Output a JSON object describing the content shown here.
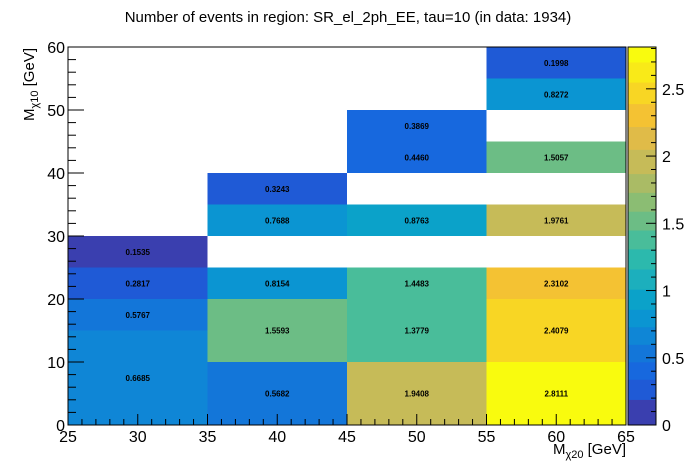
{
  "chart_data": {
    "type": "heatmap",
    "title": "Number of events in region: SR_el_2ph_EE, tau=10 (in data: 1934)",
    "xlabel": {
      "base": "M",
      "sub": "χ20",
      "unit": " [GeV]"
    },
    "ylabel": {
      "base": "M",
      "sub": "χ10",
      "unit": " [GeV]"
    },
    "xlim": [
      25,
      65
    ],
    "ylim": [
      0,
      60
    ],
    "zlim": [
      0,
      2.8111
    ],
    "x_ticks": [
      "25",
      "30",
      "35",
      "40",
      "45",
      "50",
      "55",
      "60",
      "65"
    ],
    "y_ticks": [
      "0",
      "10",
      "20",
      "30",
      "40",
      "50",
      "60"
    ],
    "z_ticks": [
      "0",
      "0.5",
      "1",
      "1.5",
      "2",
      "2.5"
    ],
    "cells": [
      {
        "x": [
          25,
          35
        ],
        "y": [
          0,
          15
        ],
        "z": 0.6685,
        "label": "0.6685"
      },
      {
        "x": [
          25,
          35
        ],
        "y": [
          15,
          20
        ],
        "z": 0.5767,
        "label": "0.5767"
      },
      {
        "x": [
          25,
          35
        ],
        "y": [
          20,
          25
        ],
        "z": 0.2817,
        "label": "0.2817"
      },
      {
        "x": [
          25,
          35
        ],
        "y": [
          25,
          30
        ],
        "z": 0.1535,
        "label": "0.1535"
      },
      {
        "x": [
          35,
          45
        ],
        "y": [
          0,
          10
        ],
        "z": 0.5682,
        "label": "0.5682"
      },
      {
        "x": [
          35,
          45
        ],
        "y": [
          10,
          20
        ],
        "z": 1.5593,
        "label": "1.5593"
      },
      {
        "x": [
          35,
          45
        ],
        "y": [
          20,
          25
        ],
        "z": 0.8154,
        "label": "0.8154"
      },
      {
        "x": [
          35,
          45
        ],
        "y": [
          30,
          35
        ],
        "z": 0.7688,
        "label": "0.7688"
      },
      {
        "x": [
          35,
          45
        ],
        "y": [
          35,
          40
        ],
        "z": 0.3243,
        "label": "0.3243"
      },
      {
        "x": [
          45,
          55
        ],
        "y": [
          0,
          10
        ],
        "z": 1.9408,
        "label": "1.9408"
      },
      {
        "x": [
          45,
          55
        ],
        "y": [
          10,
          20
        ],
        "z": 1.3779,
        "label": "1.3779"
      },
      {
        "x": [
          45,
          55
        ],
        "y": [
          20,
          25
        ],
        "z": 1.4483,
        "label": "1.4483"
      },
      {
        "x": [
          45,
          55
        ],
        "y": [
          30,
          35
        ],
        "z": 0.8763,
        "label": "0.8763"
      },
      {
        "x": [
          45,
          55
        ],
        "y": [
          40,
          45
        ],
        "z": 0.446,
        "label": "0.4460"
      },
      {
        "x": [
          45,
          55
        ],
        "y": [
          45,
          50
        ],
        "z": 0.3869,
        "label": "0.3869"
      },
      {
        "x": [
          55,
          65
        ],
        "y": [
          0,
          10
        ],
        "z": 2.8111,
        "label": "2.8111"
      },
      {
        "x": [
          55,
          65
        ],
        "y": [
          10,
          20
        ],
        "z": 2.4079,
        "label": "2.4079"
      },
      {
        "x": [
          55,
          65
        ],
        "y": [
          20,
          25
        ],
        "z": 2.3102,
        "label": "2.3102"
      },
      {
        "x": [
          55,
          65
        ],
        "y": [
          30,
          35
        ],
        "z": 1.9761,
        "label": "1.9761"
      },
      {
        "x": [
          55,
          65
        ],
        "y": [
          40,
          45
        ],
        "z": 1.5057,
        "label": "1.5057"
      },
      {
        "x": [
          55,
          65
        ],
        "y": [
          50,
          55
        ],
        "z": 0.8272,
        "label": "0.8272"
      },
      {
        "x": [
          55,
          65
        ],
        "y": [
          55,
          60
        ],
        "z": 0.1998,
        "label": "0.1998"
      }
    ],
    "palette": [
      "#3a3faf",
      "#1f5ad6",
      "#1768de",
      "#1376d9",
      "#0f86d6",
      "#0b95d2",
      "#0ba2c9",
      "#1cafbd",
      "#2cb9ad",
      "#49bd9a",
      "#6cbd85",
      "#8bbd73",
      "#aabb65",
      "#c6bb58",
      "#e0bb48",
      "#f4c233",
      "#f8d624",
      "#f9ea18",
      "#f9fb0e"
    ],
    "colorbar_bounds": [
      0,
      0.19,
      0.34,
      0.47,
      0.6,
      0.73,
      0.86,
      1.01,
      1.16,
      1.31,
      1.45,
      1.59,
      1.73,
      1.87,
      2.05,
      2.22,
      2.39,
      2.55,
      2.7,
      2.8111
    ]
  }
}
